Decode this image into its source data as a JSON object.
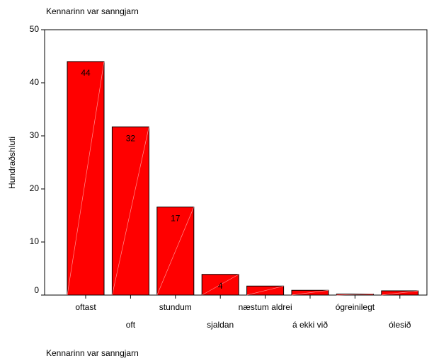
{
  "chart_data": {
    "type": "bar",
    "title": "Kennarinn var sanngjarn",
    "xlabel": "Kennarinn var sanngjarn",
    "ylabel": "Hundraðshluti",
    "categories": [
      "oftast",
      "oft",
      "stundum",
      "sjaldan",
      "næstum aldrei",
      "á ekki við",
      "ógreinilegt",
      "ólesið"
    ],
    "values": [
      44,
      31.7,
      16.6,
      3.9,
      1.7,
      0.9,
      0.2,
      0.8
    ],
    "value_labels": [
      "44",
      "32",
      "17",
      "4",
      null,
      null,
      null,
      null
    ],
    "color": "#ff0000",
    "ylim": [
      0,
      50
    ],
    "yticks": [
      0,
      10,
      20,
      30,
      40,
      50
    ]
  }
}
